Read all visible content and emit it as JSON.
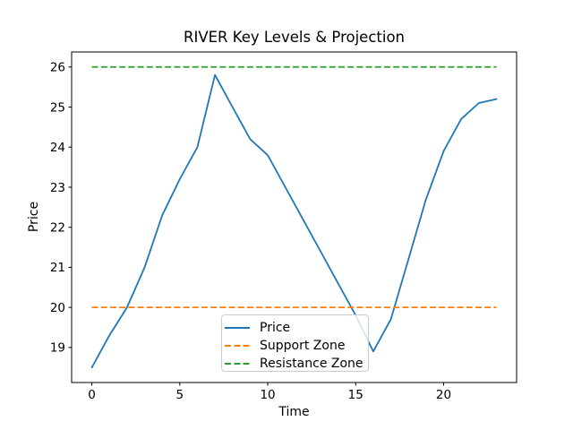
{
  "chart_data": {
    "type": "line",
    "title": "RIVER Key Levels & Projection",
    "xlabel": "Time",
    "ylabel": "Price",
    "x": [
      0,
      1,
      2,
      3,
      4,
      5,
      6,
      7,
      8,
      9,
      10,
      11,
      12,
      13,
      14,
      15,
      16,
      17,
      18,
      19,
      20,
      21,
      22,
      23
    ],
    "series": [
      {
        "name": "Price",
        "color": "#1f77b4",
        "line_style": "solid",
        "values": [
          18.5,
          19.3,
          20.0,
          21.0,
          22.3,
          23.2,
          24.0,
          25.8,
          25.0,
          24.2,
          23.8,
          23.0,
          22.2,
          21.4,
          20.6,
          19.8,
          18.9,
          19.7,
          21.2,
          22.7,
          23.9,
          24.7,
          25.1,
          25.2
        ]
      },
      {
        "name": "Support Zone",
        "color": "#ff7f0e",
        "line_style": "dashed",
        "level": 20.0
      },
      {
        "name": "Resistance Zone",
        "color": "#2ca02c",
        "line_style": "dashed",
        "level": 26.0
      }
    ],
    "xticks": [
      0,
      5,
      10,
      15,
      20
    ],
    "yticks": [
      19,
      20,
      21,
      22,
      23,
      24,
      25,
      26
    ],
    "xlim": [
      -1.15,
      24.15
    ],
    "ylim": [
      18.125,
      26.375
    ],
    "grid": false,
    "legend_position": "lower center"
  }
}
